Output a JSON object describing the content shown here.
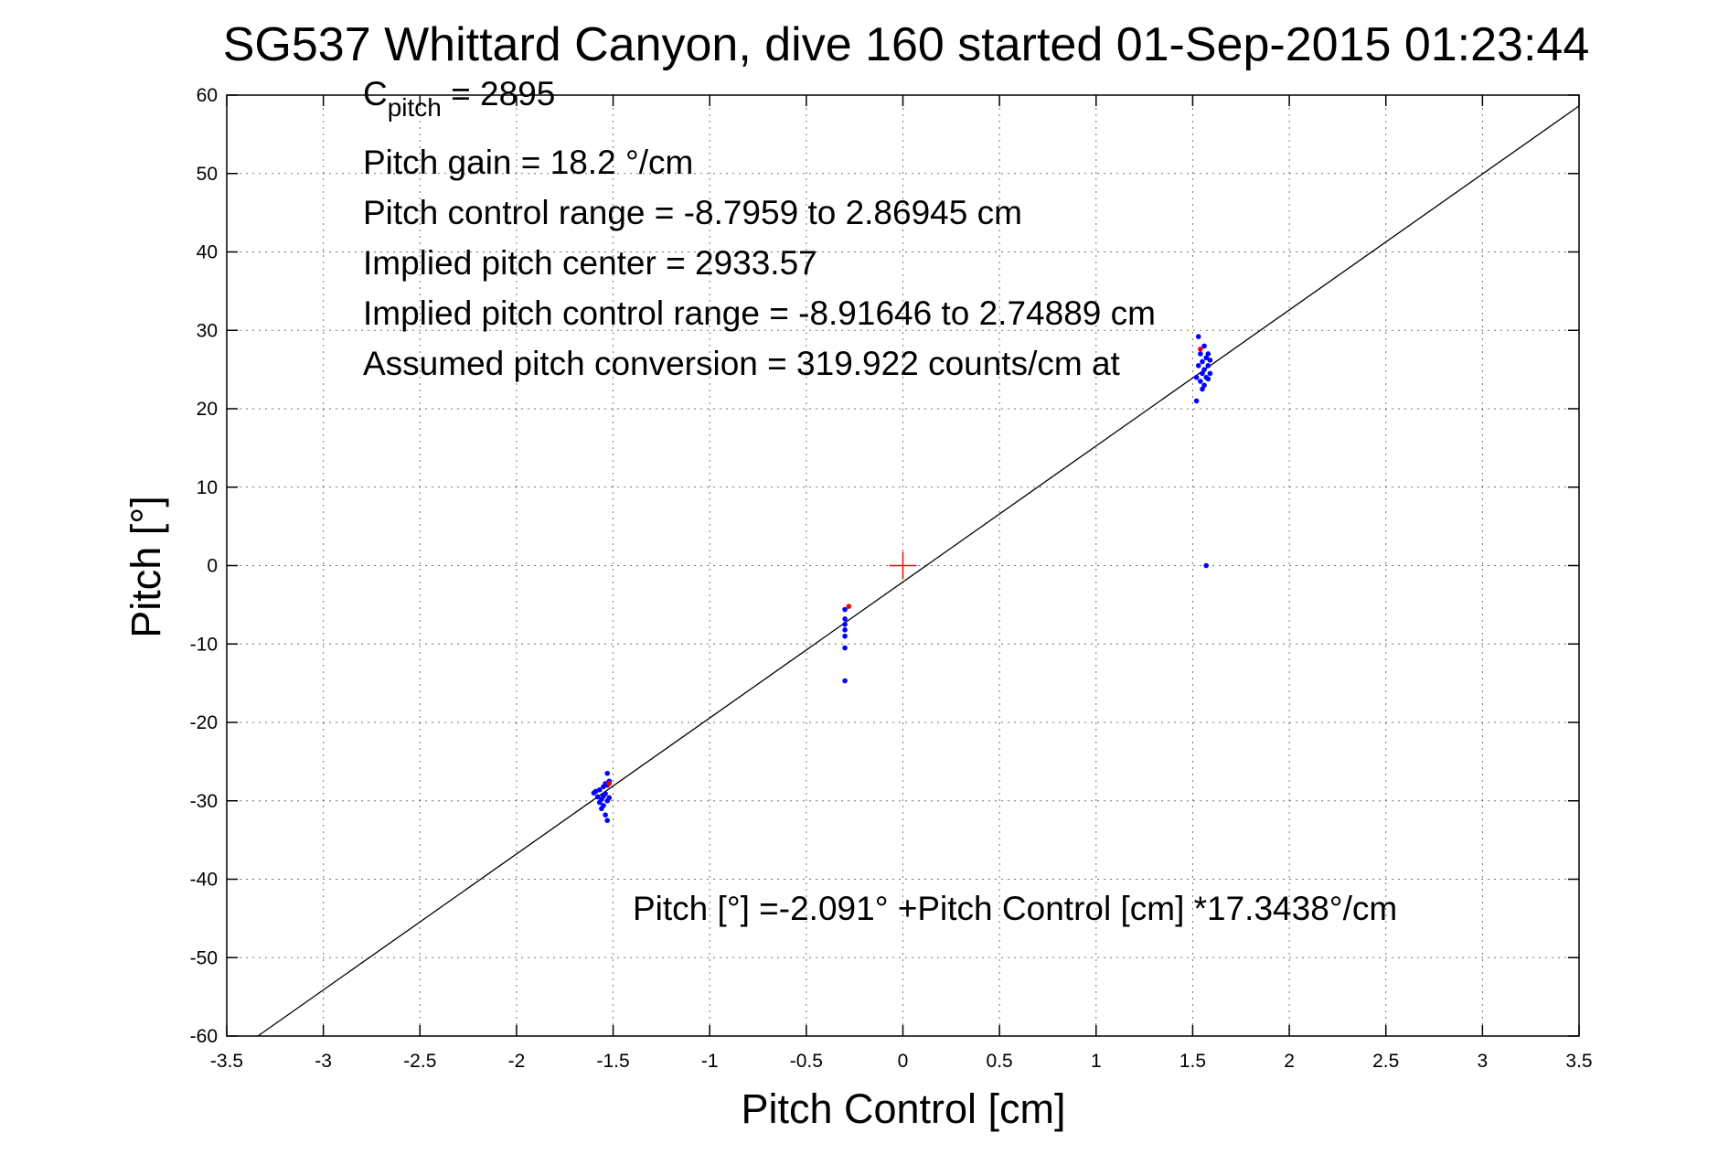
{
  "chart_data": {
    "type": "scatter",
    "title": "SG537 Whittard Canyon, dive 160 started 01-Sep-2015 01:23:44",
    "xlabel": "Pitch Control [cm]",
    "ylabel": "Pitch [°]",
    "xlim": [
      -3.5,
      3.5
    ],
    "ylim": [
      -60,
      60
    ],
    "xticks": [
      -3.5,
      -3,
      -2.5,
      -2,
      -1.5,
      -1,
      -0.5,
      0,
      0.5,
      1,
      1.5,
      2,
      2.5,
      3,
      3.5
    ],
    "yticks": [
      -60,
      -50,
      -40,
      -30,
      -20,
      -10,
      0,
      10,
      20,
      30,
      40,
      50,
      60
    ],
    "xtick_labels": [
      "-3.5",
      "-3",
      "-2.5",
      "-2",
      "-1.5",
      "-1",
      "-0.5",
      "0",
      "0.5",
      "1",
      "1.5",
      "2",
      "2.5",
      "3",
      "3.5"
    ],
    "ytick_labels": [
      "-60",
      "-50",
      "-40",
      "-30",
      "-20",
      "-10",
      "0",
      "10",
      "20",
      "30",
      "40",
      "50",
      "60"
    ],
    "grid": true,
    "fit_line": {
      "intercept": -2.091,
      "slope": 17.3438
    },
    "center_marker": {
      "x": 0,
      "y": 0,
      "color": "#ff0000"
    },
    "series": [
      {
        "color": "#0000ff",
        "points": [
          [
            -1.6,
            -29
          ],
          [
            -1.59,
            -28.8
          ],
          [
            -1.58,
            -29.5
          ],
          [
            -1.57,
            -30.2
          ],
          [
            -1.57,
            -28.6
          ],
          [
            -1.56,
            -29.8
          ],
          [
            -1.56,
            -31.0
          ],
          [
            -1.55,
            -28.2
          ],
          [
            -1.55,
            -29.4
          ],
          [
            -1.55,
            -30.6
          ],
          [
            -1.54,
            -27.8
          ],
          [
            -1.54,
            -29.1
          ],
          [
            -1.54,
            -31.8
          ],
          [
            -1.53,
            -26.5
          ],
          [
            -1.53,
            -28.0
          ],
          [
            -1.53,
            -30.0
          ],
          [
            -1.53,
            -32.5
          ],
          [
            -1.52,
            -27.5
          ],
          [
            -1.52,
            -29.6
          ],
          [
            -0.3,
            -5.6
          ],
          [
            -0.3,
            -6.8
          ],
          [
            -0.3,
            -7.5
          ],
          [
            -0.3,
            -8.2
          ],
          [
            -0.3,
            -9.0
          ],
          [
            -0.3,
            -10.5
          ],
          [
            -0.3,
            -14.7
          ],
          [
            1.52,
            21.0
          ],
          [
            1.52,
            24.0
          ],
          [
            1.53,
            29.2
          ],
          [
            1.53,
            25.5
          ],
          [
            1.54,
            27.0
          ],
          [
            1.54,
            23.5
          ],
          [
            1.55,
            26.0
          ],
          [
            1.55,
            24.5
          ],
          [
            1.55,
            22.5
          ],
          [
            1.56,
            28.0
          ],
          [
            1.56,
            25.0
          ],
          [
            1.56,
            23.0
          ],
          [
            1.57,
            26.5
          ],
          [
            1.57,
            24.0
          ],
          [
            1.58,
            25.5
          ],
          [
            1.58,
            27.0
          ],
          [
            1.58,
            23.8
          ],
          [
            1.59,
            24.5
          ],
          [
            1.59,
            26.2
          ],
          [
            1.57,
            0
          ]
        ]
      },
      {
        "color": "#ff0000",
        "points": [
          [
            -1.52,
            -27.8
          ],
          [
            -0.28,
            -5.2
          ],
          [
            1.54,
            27.6
          ]
        ]
      }
    ],
    "annotations": [
      {
        "text": "Pitch gain = 18.2 °/cm"
      },
      {
        "text": "Pitch control range = -8.7959 to 2.86945 cm"
      },
      {
        "text": "Implied pitch center = 2933.57"
      },
      {
        "text": "Implied pitch control range = -8.91646 to 2.74889 cm"
      },
      {
        "text": "Assumed pitch conversion = 319.922 counts/cm at"
      }
    ],
    "cpitch": {
      "base": "C",
      "sub": "pitch",
      "rest": " = 2895"
    },
    "equation": "Pitch [°] =-2.091° +Pitch Control [cm] *17.3438°/cm"
  }
}
